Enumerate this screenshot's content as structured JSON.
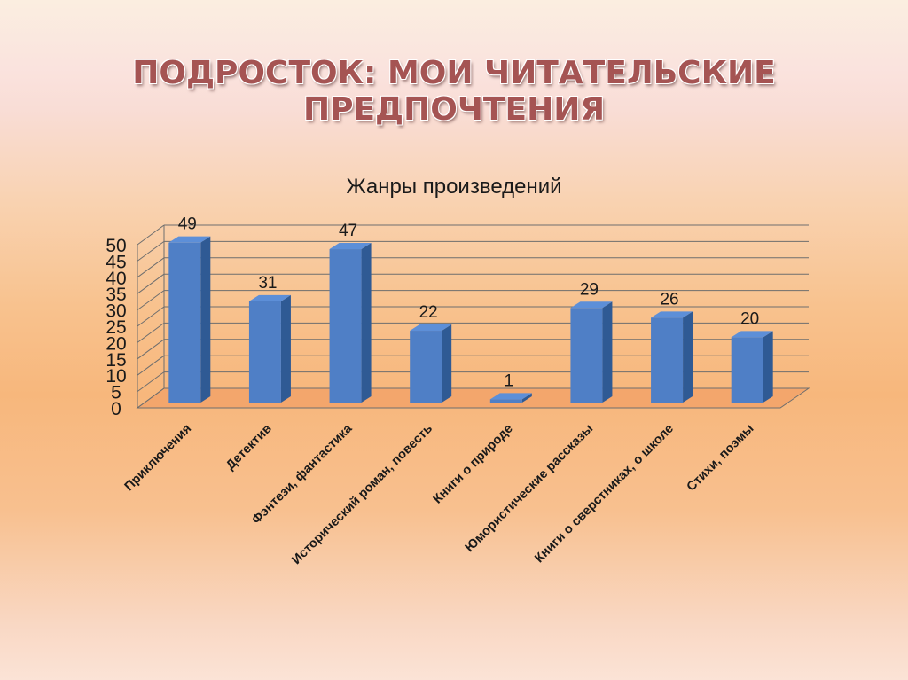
{
  "slide": {
    "title": "ПОДРОСТОК: МОИ ЧИТАТЕЛЬСКИЕ ПРЕДПОЧТЕНИЯ"
  },
  "colors": {
    "bar_front": "#4f7fc6",
    "bar_side": "#2f5a94",
    "bar_top": "#5d8fd8",
    "grid": "#6e6e6e",
    "title": "#a55453"
  },
  "chart_data": {
    "type": "bar",
    "title": "Жанры произведений",
    "categories": [
      "Приключения",
      "Детектив",
      "Фэнтези, фантастика",
      "Исторический роман, повесть",
      "Книги о природе",
      "Юмористические рассказы",
      "Книги о сверстниках, о школе",
      "Стихи, поэмы"
    ],
    "values": [
      49,
      31,
      47,
      22,
      1,
      29,
      26,
      20
    ],
    "data_labels": [
      "49",
      "31",
      "47",
      "22",
      "1",
      "29",
      "26",
      "20"
    ],
    "ylim": [
      0,
      50
    ],
    "y_ticks": [
      0,
      5,
      10,
      15,
      20,
      25,
      30,
      35,
      40,
      45,
      50
    ],
    "y_tick_labels": [
      "0",
      "5",
      "10",
      "15",
      "20",
      "25",
      "30",
      "35",
      "40",
      "45",
      "50"
    ],
    "grid": true,
    "legend": "none",
    "style": "3d"
  }
}
